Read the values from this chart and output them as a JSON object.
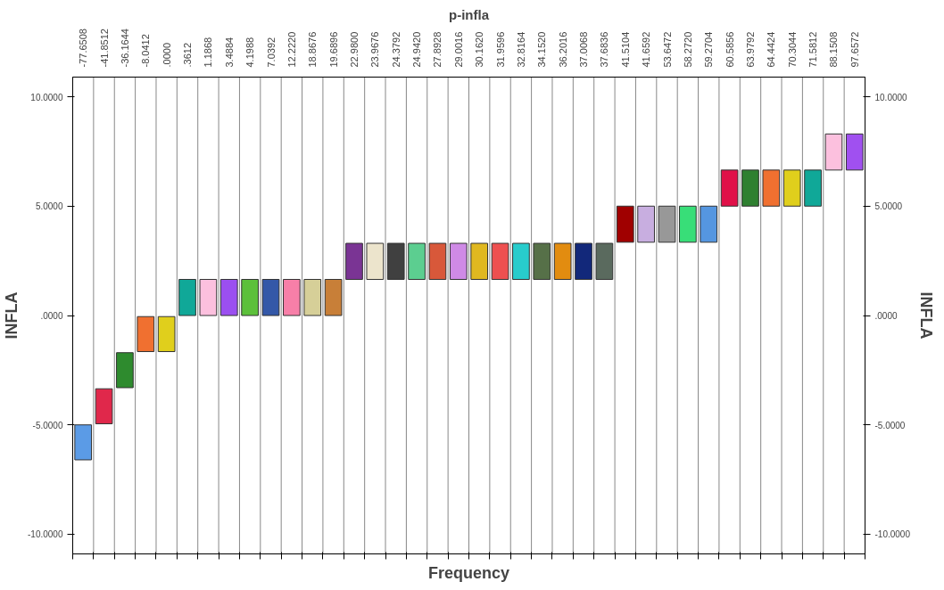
{
  "chart_data": {
    "type": "bar",
    "title": "p-infla",
    "xlabel": "Frequency",
    "ylabel": "INFLA",
    "y2label": "INFLA",
    "categories": [
      "-77.6508",
      "-41.8512",
      "-36.1644",
      "-8.0412",
      ".0000",
      ".3612",
      "1.1868",
      "3.4884",
      "4.1988",
      "7.0392",
      "12.2220",
      "18.8676",
      "19.6896",
      "22.9800",
      "23.9676",
      "24.3792",
      "24.9420",
      "27.8928",
      "29.0016",
      "30.1620",
      "31.9596",
      "32.8164",
      "34.1520",
      "36.2016",
      "37.0068",
      "37.6836",
      "41.5104",
      "41.6592",
      "53.6472",
      "58.2720",
      "59.2704",
      "60.5856",
      "63.9792",
      "64.4424",
      "70.3044",
      "71.5812",
      "88.1508",
      "97.6572"
    ],
    "base": [
      -6.6,
      -4.95,
      -3.3,
      -1.65,
      -1.65,
      0,
      0,
      0,
      0,
      0,
      0,
      0,
      0,
      1.65,
      1.65,
      1.65,
      1.65,
      1.65,
      1.65,
      1.65,
      1.65,
      1.65,
      1.65,
      1.65,
      1.65,
      1.65,
      3.35,
      3.35,
      3.35,
      3.35,
      3.35,
      5.0,
      5.0,
      5.0,
      5.0,
      5.0,
      6.65,
      6.65
    ],
    "values": [
      1.6,
      1.6,
      1.6,
      1.6,
      1.6,
      1.65,
      1.65,
      1.65,
      1.65,
      1.65,
      1.65,
      1.65,
      1.65,
      1.65,
      1.65,
      1.65,
      1.65,
      1.65,
      1.65,
      1.65,
      1.65,
      1.65,
      1.65,
      1.65,
      1.65,
      1.65,
      1.65,
      1.65,
      1.65,
      1.65,
      1.65,
      1.65,
      1.65,
      1.65,
      1.65,
      1.65,
      1.65,
      1.65
    ],
    "colors": [
      "#5b9be6",
      "#e0284b",
      "#2e8b2e",
      "#f07030",
      "#e0cf1c",
      "#10a898",
      "#fcc0de",
      "#9b4ff0",
      "#5cc03a",
      "#3458a8",
      "#f77fa8",
      "#d6cf98",
      "#c87f38",
      "#7a3494",
      "#ece4cc",
      "#404040",
      "#5cce90",
      "#d8583a",
      "#cf8ae6",
      "#e0b820",
      "#ee5050",
      "#28cccc",
      "#567048",
      "#e28c10",
      "#12287a",
      "#5a6a5e",
      "#a00000",
      "#c8aee0",
      "#989898",
      "#38de78",
      "#5596e0",
      "#e01048",
      "#2e8030",
      "#f07030",
      "#e0cf1c",
      "#10a898",
      "#fcc0de",
      "#a050f0"
    ],
    "ylim": [
      -10.9,
      10.9
    ],
    "yticks": [
      {
        "value": -10,
        "label": "-10.0000"
      },
      {
        "value": -5,
        "label": "-5.0000"
      },
      {
        "value": 0,
        "label": ".0000"
      },
      {
        "value": 5,
        "label": "5.0000"
      },
      {
        "value": 10,
        "label": "10.0000"
      }
    ],
    "y2lim": [
      -10.9,
      10.9
    ],
    "y2ticks": [
      {
        "value": -10,
        "label": "-10.0000"
      },
      {
        "value": -5,
        "label": "-5.0000"
      },
      {
        "value": 0,
        "label": ".0000"
      },
      {
        "value": 5,
        "label": "5.0000"
      },
      {
        "value": 10,
        "label": "10.0000"
      }
    ],
    "grid": false
  }
}
